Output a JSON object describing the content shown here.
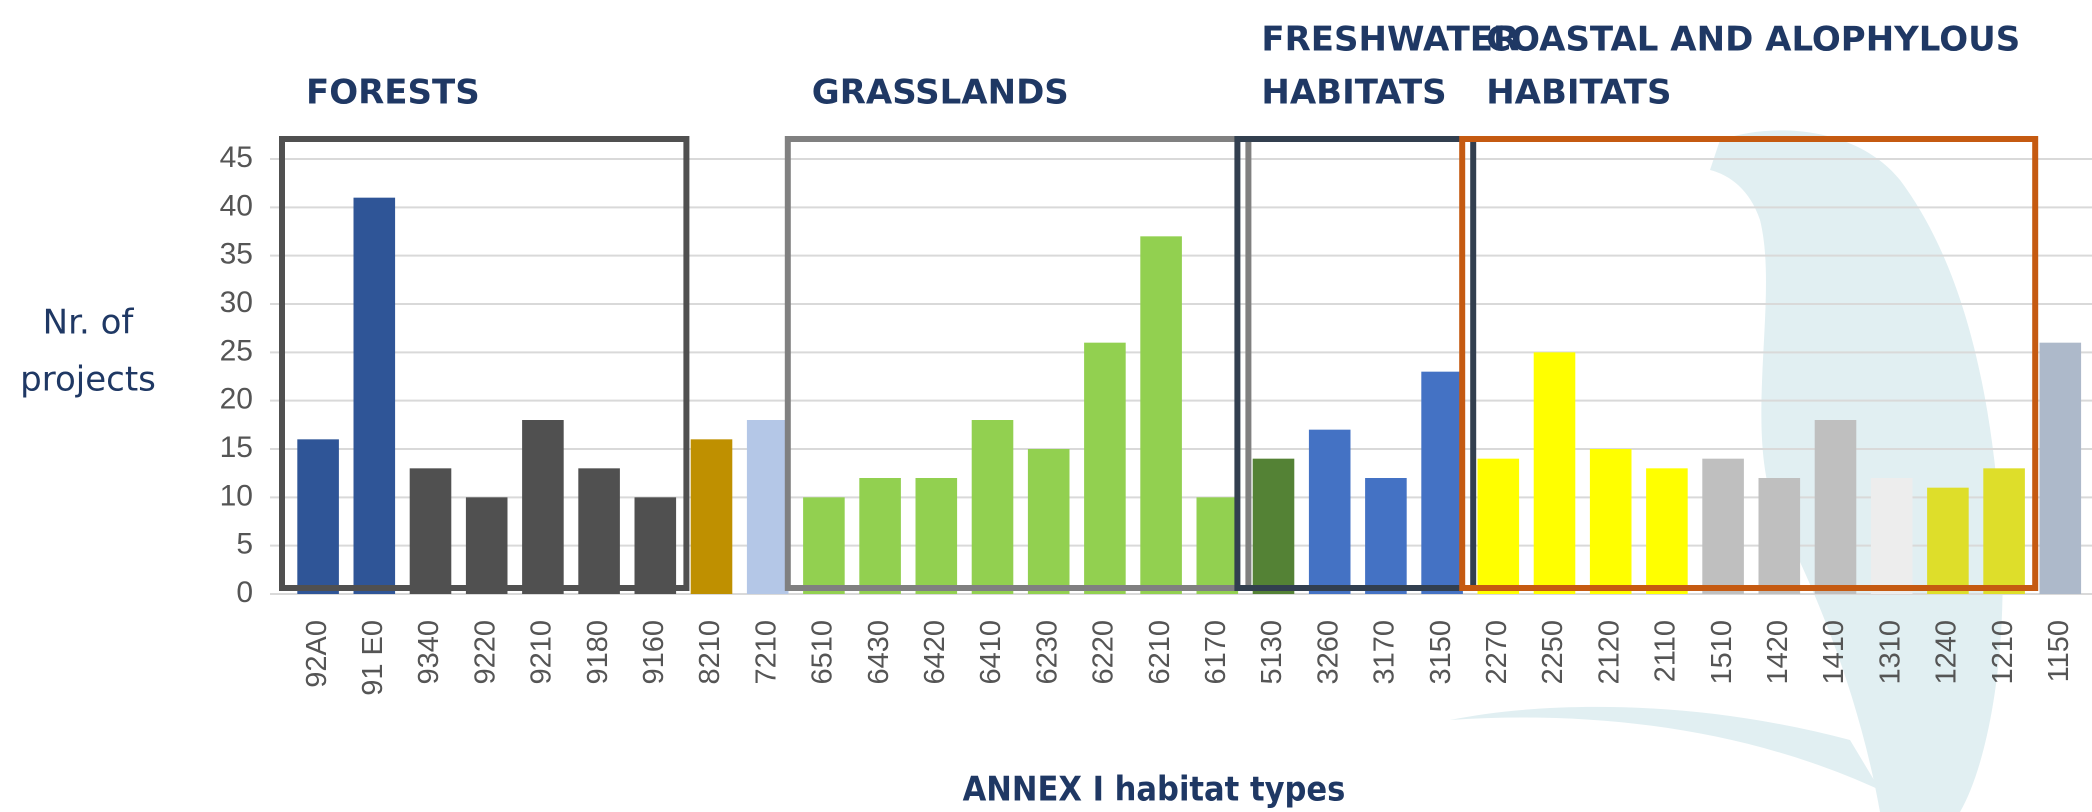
{
  "chart_data": {
    "type": "bar",
    "categories": [
      "92A0",
      "91 E0",
      "9340",
      "9220",
      "9210",
      "9180",
      "9160",
      "8210",
      "7210",
      "6510",
      "6430",
      "6420",
      "6410",
      "6230",
      "6220",
      "6210",
      "6170",
      "5130",
      "3260",
      "3170",
      "3150",
      "2270",
      "2250",
      "2120",
      "2110",
      "1510",
      "1420",
      "1410",
      "1310",
      "1240",
      "1210",
      "1150"
    ],
    "values": [
      16,
      41,
      13,
      10,
      18,
      13,
      10,
      16,
      18,
      10,
      12,
      12,
      18,
      15,
      26,
      37,
      10,
      14,
      17,
      12,
      23,
      14,
      25,
      15,
      13,
      14,
      12,
      18,
      12,
      11,
      13,
      26
    ],
    "colors": [
      "#2f5597",
      "#2f5597",
      "#505050",
      "#505050",
      "#505050",
      "#505050",
      "#505050",
      "#bf9000",
      "#b4c7e7",
      "#92d050",
      "#92d050",
      "#92d050",
      "#92d050",
      "#92d050",
      "#92d050",
      "#92d050",
      "#92d050",
      "#548235",
      "#4472c4",
      "#4472c4",
      "#4472c4",
      "#ffff00",
      "#ffff00",
      "#ffff00",
      "#ffff00",
      "#bfbfbf",
      "#bfbfbf",
      "#bfbfbf",
      "#ededed",
      "#dede2a",
      "#dede2a",
      "#adb9ca"
    ],
    "ylim": [
      0,
      45
    ],
    "yticks": [
      0,
      5,
      10,
      15,
      20,
      25,
      30,
      35,
      40,
      45
    ],
    "grid": true,
    "y_label": [
      "Nr. of",
      "projects"
    ],
    "x_label": "ANNEX I habitat types",
    "groups": [
      {
        "label": [
          "FORESTS"
        ],
        "first": "92A0",
        "last": "9160",
        "color": "#505050"
      },
      {
        "label": [
          "GRASSLANDS"
        ],
        "first": "6510",
        "last": "6170",
        "color": "#808080"
      },
      {
        "label": [
          "FRESHWATER",
          "HABITATS"
        ],
        "first": "5130",
        "last": "3150",
        "color": "#323f4f"
      },
      {
        "label": [
          "COASTAL AND ALOPHYLOUS",
          "HABITATS"
        ],
        "first": "2270",
        "last": "1210",
        "color": "#c55a11"
      }
    ]
  }
}
